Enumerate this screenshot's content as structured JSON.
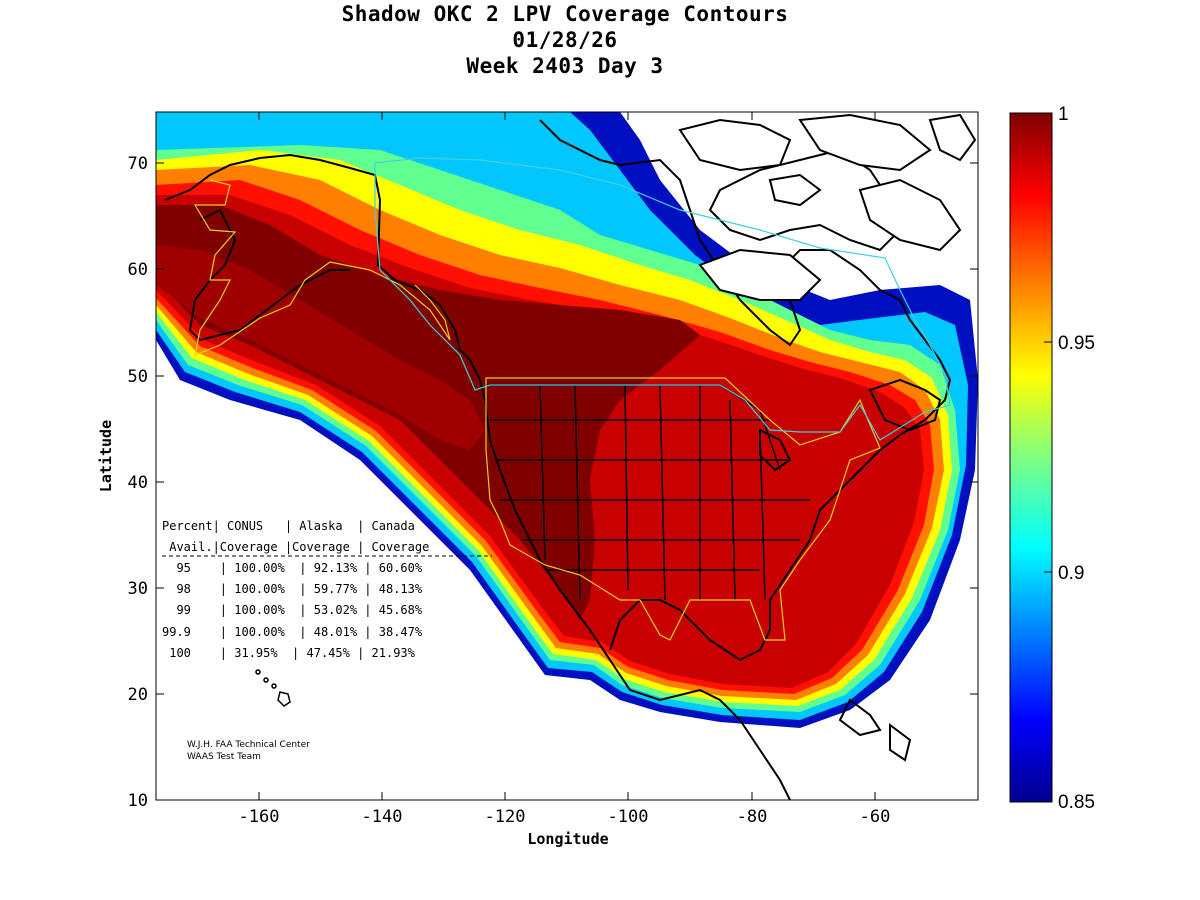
{
  "title": {
    "line1": "Shadow OKC 2 LPV Coverage Contours",
    "line2": "01/28/26",
    "line3": "Week 2403 Day 3"
  },
  "axes": {
    "xlabel": "Longitude",
    "ylabel": "Latitude",
    "xticks": [
      "-160",
      "-140",
      "-120",
      "-100",
      "-80",
      "-60"
    ],
    "yticks": [
      "70",
      "60",
      "50",
      "40",
      "30",
      "20",
      "10"
    ]
  },
  "colorbar": {
    "ticks": [
      "1",
      "0.95",
      "0.9",
      "0.85"
    ],
    "colors": [
      "#00008f",
      "#0000ff",
      "#0080ff",
      "#00ffff",
      "#80ff80",
      "#ffff00",
      "#ff8000",
      "#ff0000",
      "#800000"
    ]
  },
  "table": {
    "header1": "Percent| CONUS   | Alaska  | Canada",
    "header2": " Avail.|Coverage |Coverage | Coverage",
    "rows": [
      "  95    | 100.00%  | 92.13% | 60.60%",
      "  98    | 100.00%  | 59.77% | 48.13%",
      "  99    | 100.00%  | 53.02% | 45.68%",
      "99.9    | 100.00%  | 48.01% | 38.47%",
      " 100    | 31.95%  | 47.45% | 21.93%"
    ]
  },
  "credit": {
    "line1": "W.J.H. FAA Technical Center",
    "line2": "WAAS Test Team"
  },
  "colors": {
    "dark_red": "#800000",
    "red": "#c00000",
    "bright_red": "#ff0000",
    "orange": "#ff8000",
    "yellow": "#ffff00",
    "green": "#80ff80",
    "cyan": "#00e0ff",
    "blue": "#0040ff",
    "navy": "#00008f",
    "region_outline_conus": "#e8d020",
    "region_outline_canada": "#40d0e0"
  }
}
